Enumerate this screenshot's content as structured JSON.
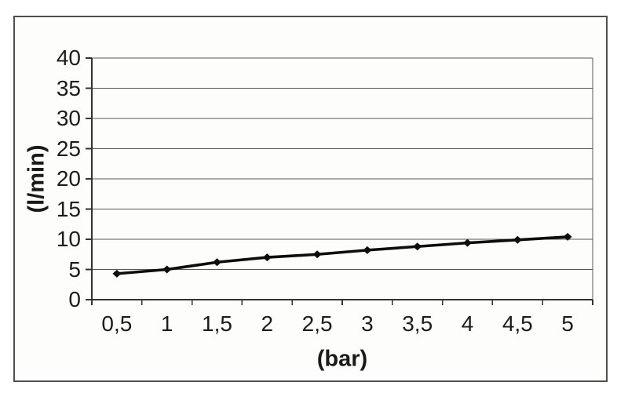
{
  "frame": {
    "border_color": "#4f4f4f",
    "background": "#fdfdfc"
  },
  "chart_data": {
    "type": "line",
    "title": "",
    "xlabel": "(bar)",
    "ylabel": "(l/min)",
    "x": [
      0.5,
      1,
      1.5,
      2,
      2.5,
      3,
      3.5,
      4,
      4.5,
      5
    ],
    "x_tick_labels": [
      "0,5",
      "1",
      "1,5",
      "2",
      "2,5",
      "3",
      "3,5",
      "4",
      "4,5",
      "5"
    ],
    "values": [
      4.3,
      5.0,
      6.2,
      7.0,
      7.5,
      8.2,
      8.8,
      9.4,
      9.9,
      10.4
    ],
    "ylim": [
      0,
      40
    ],
    "ytick_step": 5,
    "y_tick_labels": [
      "0",
      "5",
      "10",
      "15",
      "20",
      "25",
      "30",
      "35",
      "40"
    ],
    "grid": true,
    "legend": "none",
    "marker": "diamond",
    "colors": {
      "line": "#0d0d0d",
      "marker": "#0d0d0d",
      "gridline": "#575757",
      "axis": "#333333",
      "text": "#1c1c1c"
    }
  }
}
